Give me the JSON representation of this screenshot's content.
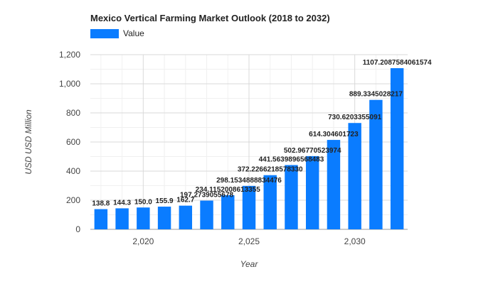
{
  "chart_data": {
    "type": "bar",
    "title": "Mexico Vertical Farming Market Outlook (2018 to 2032)",
    "xlabel": "Year",
    "ylabel": "USD USD Million",
    "legend": {
      "position": "top-left",
      "entries": [
        "Value"
      ]
    },
    "grid": true,
    "color": "#0a7cff",
    "x_ticks": [
      2020,
      2025,
      2030
    ],
    "x_tick_labels": [
      "2,020",
      "2,025",
      "2,030"
    ],
    "y_ticks": [
      0,
      200,
      400,
      600,
      800,
      1000,
      1200
    ],
    "y_tick_labels": [
      "0",
      "200",
      "400",
      "600",
      "800",
      "1,000",
      "1,200"
    ],
    "ylim": [
      0,
      1200
    ],
    "xlim": [
      2017.5,
      2032.5
    ],
    "series": [
      {
        "name": "Value",
        "x": [
          2018,
          2019,
          2020,
          2021,
          2022,
          2023,
          2024,
          2025,
          2026,
          2027,
          2028,
          2029,
          2030,
          2031,
          2032
        ],
        "values": [
          138.8,
          144.3,
          150.0,
          155.9,
          162.7,
          197.3,
          234.1,
          298.2,
          372.2,
          441.6,
          503.0,
          614.3,
          730.6,
          889.3,
          1107.2
        ],
        "labels": [
          "138.8",
          "144.3",
          "150.0",
          "155.9",
          "162.7",
          "197.2739055678",
          "234.1152008613355",
          "298.1534888834476",
          "372.2266218578330",
          "441.5639896568483",
          "502.96770523974",
          "614.304601723",
          "730.6203355091",
          "889.3345028217",
          "1107.2087584061574"
        ]
      }
    ]
  }
}
